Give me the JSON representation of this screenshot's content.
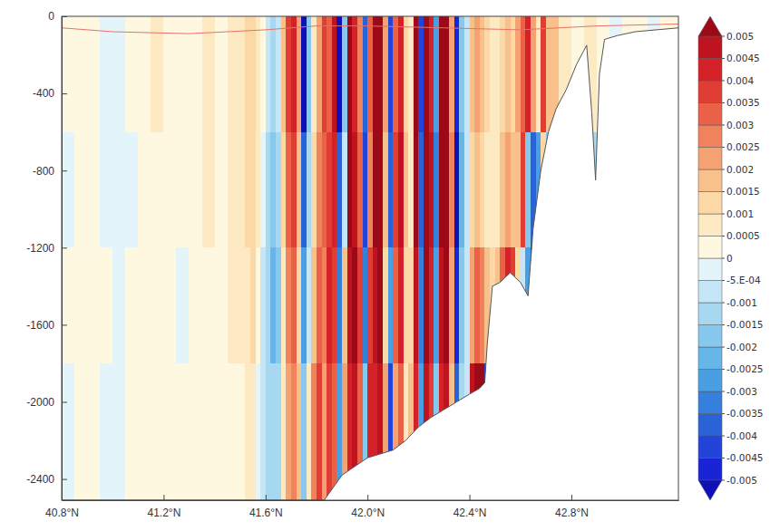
{
  "chart_data": {
    "type": "heatmap",
    "xlim": [
      40.8,
      43.22
    ],
    "ylim": [
      -2510,
      0
    ],
    "xticks": [
      {
        "value": 40.8,
        "label": "40.8°N"
      },
      {
        "value": 41.2,
        "label": "41.2°N"
      },
      {
        "value": 41.6,
        "label": "41.6°N"
      },
      {
        "value": 42.0,
        "label": "42.0°N"
      },
      {
        "value": 42.4,
        "label": "42.4°N"
      },
      {
        "value": 42.8,
        "label": "42.8°N"
      }
    ],
    "yticks": [
      0,
      -400,
      -800,
      -1200,
      -1600,
      -2000,
      -2400
    ],
    "grid": false,
    "x": [
      40.8,
      40.85,
      40.9,
      40.95,
      41,
      41.05,
      41.1,
      41.15,
      41.2,
      41.25,
      41.3,
      41.35,
      41.4,
      41.45,
      41.5,
      41.52,
      41.54,
      41.56,
      41.58,
      41.6,
      41.62,
      41.64,
      41.66,
      41.68,
      41.7,
      41.72,
      41.74,
      41.76,
      41.78,
      41.8,
      41.82,
      41.84,
      41.86,
      41.88,
      41.9,
      41.92,
      41.94,
      41.96,
      41.98,
      42,
      42.02,
      42.04,
      42.06,
      42.08,
      42.1,
      42.12,
      42.14,
      42.16,
      42.18,
      42.2,
      42.22,
      42.24,
      42.26,
      42.28,
      42.3,
      42.32,
      42.34,
      42.36,
      42.38,
      42.4,
      42.42,
      42.44,
      42.46,
      42.48,
      42.5,
      42.52,
      42.54,
      42.56,
      42.58,
      42.6,
      42.62,
      42.64,
      42.66,
      42.68,
      42.7,
      42.75,
      42.8,
      42.85,
      42.9,
      42.95,
      43,
      43.05,
      43.1,
      43.15,
      43.22
    ],
    "y": [
      0,
      -600,
      -1200,
      -1800,
      -2510
    ],
    "values": [
      [
        0.0003,
        -0.0003,
        0.0002,
        -0.0003
      ],
      [
        0.0003,
        0.0002,
        0.0003,
        0.0002
      ],
      [
        0.0004,
        0.0004,
        0.0003,
        0.0003
      ],
      [
        -0.0002,
        -0.0003,
        0.0002,
        -0.0002
      ],
      [
        -0.0003,
        -0.0002,
        -0.0002,
        -0.0003
      ],
      [
        0.0003,
        -0.0002,
        0.0003,
        0.0002
      ],
      [
        0.0004,
        0.0003,
        0.0003,
        0.0003
      ],
      [
        0.0006,
        0.0004,
        0.0004,
        0.0003
      ],
      [
        0.0003,
        0.0002,
        0.0003,
        0.0002
      ],
      [
        0.0002,
        0.0003,
        -0.0002,
        0.0002
      ],
      [
        0.0004,
        0.0003,
        0.0003,
        0.0003
      ],
      [
        0.0006,
        0.0005,
        0.0004,
        0.0003
      ],
      [
        0.0003,
        0.0004,
        0.0003,
        0.0002
      ],
      [
        0.0006,
        0.0005,
        0.0006,
        0.0004
      ],
      [
        0.0008,
        0.0008,
        0.0006,
        0.0004
      ],
      [
        0.001,
        0.001,
        0.0008,
        0.0005
      ],
      [
        0.0012,
        0.0012,
        0.001,
        0.0006
      ],
      [
        0.0008,
        0.0006,
        0.0004,
        -0.0003
      ],
      [
        0.0004,
        -0.0004,
        -0.0008,
        -0.0008
      ],
      [
        -0.0006,
        -0.0012,
        -0.0015,
        -0.0012
      ],
      [
        -0.0015,
        -0.002,
        -0.0022,
        -0.0015
      ],
      [
        -0.0008,
        -0.0012,
        -0.0016,
        -0.0012
      ],
      [
        0.0015,
        0.001,
        0.0008,
        0.0006
      ],
      [
        0.0035,
        0.003,
        0.0025,
        0.002
      ],
      [
        0.004,
        0.0035,
        0.003,
        0.0025
      ],
      [
        0.002,
        0.0015,
        0.001,
        0.0015
      ],
      [
        -0.0055,
        -0.004,
        -0.003,
        -0.002
      ],
      [
        -0.002,
        -0.0015,
        -0.001,
        0.0005
      ],
      [
        0.0008,
        0.0012,
        0.0015,
        0.0025
      ],
      [
        0.002,
        0.0025,
        0.003,
        0.0035
      ],
      [
        0.0035,
        0.003,
        0.0025,
        0.002
      ],
      [
        0.003,
        0.0035,
        0.004,
        0.0035
      ],
      [
        0.0045,
        0.004,
        0.0035,
        0.003
      ],
      [
        -0.0055,
        -0.004,
        -0.0035,
        -0.003
      ],
      [
        -0.002,
        -0.001,
        0.0015,
        0.002
      ],
      [
        0.0055,
        0.005,
        0.0045,
        0.004
      ],
      [
        0.004,
        0.0045,
        0.005,
        0.0045
      ],
      [
        0.0025,
        0.003,
        0.0035,
        0.003
      ],
      [
        -0.004,
        -0.0045,
        -0.0035,
        -0.002
      ],
      [
        0.003,
        0.0025,
        0.0035,
        0.004
      ],
      [
        0.0055,
        0.005,
        0.0045,
        0.004
      ],
      [
        0.005,
        0.0055,
        0.005,
        0.0045
      ],
      [
        0.002,
        0.0015,
        0.001,
        0.002
      ],
      [
        -0.0045,
        -0.004,
        -0.003,
        -0.0045
      ],
      [
        0.003,
        0.0035,
        0.003,
        0.002
      ],
      [
        0.004,
        0.0045,
        0.004,
        0.003
      ],
      [
        0.001,
        0.0015,
        0.001,
        0.0008
      ],
      [
        0.0005,
        0.0008,
        0.001,
        0.0015
      ],
      [
        0.0055,
        0.005,
        0.0045,
        0.004
      ],
      [
        -0.0045,
        -0.004,
        -0.0035,
        -0.003
      ],
      [
        0.005,
        0.0055,
        0.005,
        0.0045
      ],
      [
        0.004,
        0.0045,
        0.004,
        0.0035
      ],
      [
        -0.003,
        -0.0035,
        -0.003,
        -0.002
      ],
      [
        0.0055,
        0.005,
        0.0045,
        0.004
      ],
      [
        0.005,
        0.0055,
        0.005,
        0.0045
      ],
      [
        0.002,
        0.0025,
        0.002,
        0.0015
      ],
      [
        -0.005,
        -0.0055,
        -0.005,
        -0.004
      ],
      [
        -0.002,
        -0.0025,
        -0.002,
        -0.0015
      ],
      [
        -0.0008,
        -0.001,
        -0.0006,
        -0.001
      ],
      [
        0.0015,
        0.001,
        0.002,
        0.0045
      ],
      [
        0.002,
        0.0015,
        0.003,
        0.0055
      ],
      [
        0.0015,
        0.001,
        0.0025,
        0.0055
      ],
      [
        0.001,
        0.0008,
        0.0015,
        -0.0045
      ],
      [
        0.0008,
        0.0006,
        0.001,
        -0.003
      ],
      [
        0.0005,
        0.0008,
        0.0015,
        null
      ],
      [
        0.001,
        0.0015,
        0.003,
        null
      ],
      [
        0.0015,
        0.002,
        0.004,
        null
      ],
      [
        0.001,
        0.0015,
        0.0035,
        null
      ],
      [
        0.002,
        0.0015,
        0.001,
        null
      ],
      [
        0.003,
        0.0035,
        -0.001,
        null
      ],
      [
        0.004,
        -0.002,
        -0.003,
        null
      ],
      [
        0.002,
        -0.004,
        0.0045,
        null
      ],
      [
        0.0005,
        -0.003,
        null,
        null
      ],
      [
        0.0035,
        0.001,
        null,
        null
      ],
      [
        0.0015,
        -0.002,
        null,
        null
      ],
      [
        0.0006,
        null,
        null,
        null
      ],
      [
        0.0004,
        null,
        null,
        null
      ],
      [
        0.0008,
        -0.0015,
        null,
        null
      ],
      [
        0.0003,
        null,
        null,
        null
      ],
      [
        -0.0003,
        null,
        null,
        null
      ],
      [
        0.0003,
        null,
        null,
        null
      ],
      [
        0.0003,
        null,
        null,
        null
      ],
      [
        -0.0002,
        null,
        null,
        null
      ],
      [
        0.0002,
        null,
        null,
        null
      ]
    ],
    "seafloor": {
      "x": [
        40.8,
        41.83,
        41.9,
        42.0,
        42.05,
        42.1,
        42.15,
        42.2,
        42.25,
        42.3,
        42.35,
        42.4,
        42.44,
        42.46,
        42.47,
        42.49,
        42.52,
        42.56,
        42.6,
        42.63,
        42.65,
        42.68,
        42.71,
        42.74,
        42.78,
        42.82,
        42.86,
        42.88,
        42.895,
        42.91,
        42.93,
        42.98,
        43.05,
        43.22
      ],
      "depth": [
        -2510,
        -2510,
        -2380,
        -2290,
        -2270,
        -2250,
        -2200,
        -2130,
        -2080,
        -2040,
        -2000,
        -1960,
        -1930,
        -1900,
        -1700,
        -1400,
        -1380,
        -1330,
        -1380,
        -1450,
        -1100,
        -800,
        -600,
        -480,
        -380,
        -250,
        -150,
        -500,
        -850,
        -300,
        -120,
        -100,
        -80,
        -60
      ]
    },
    "surface_line": {
      "x": [
        40.8,
        41.0,
        41.3,
        41.6,
        41.8,
        42.0,
        42.3,
        42.6,
        42.9,
        43.22
      ],
      "depth": [
        -60,
        -80,
        -90,
        -70,
        -50,
        -50,
        -60,
        -70,
        -50,
        -40
      ]
    },
    "colorbar": {
      "range": [
        -0.005,
        0.005
      ],
      "ticks": [
        0.005,
        0.0045,
        0.004,
        0.0035,
        0.003,
        0.0025,
        0.002,
        0.0015,
        0.001,
        0.0005,
        0,
        {
          "value": -0.0005,
          "label": "-5.E-04"
        },
        -0.001,
        -0.0015,
        -0.002,
        -0.0025,
        -0.003,
        -0.0035,
        -0.004,
        -0.0045,
        -0.005
      ]
    }
  }
}
